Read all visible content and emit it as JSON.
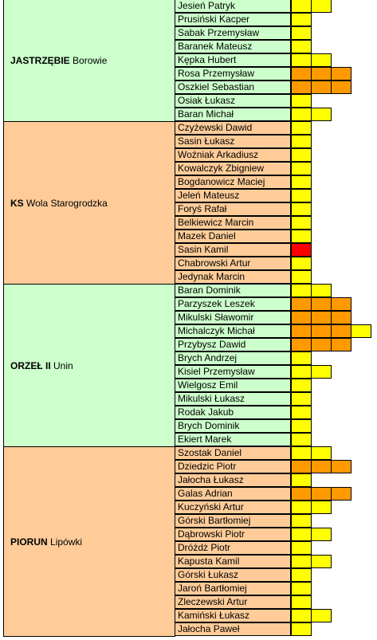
{
  "colors": {
    "green": "#ccffcc",
    "orange": "#ffcc99",
    "yellow_card": "#ffff00",
    "orange_card": "#ff9900",
    "red_card": "#ff0000"
  },
  "teams": [
    {
      "club": "JASTRZĘBIE",
      "town": "Borowie",
      "color": "green",
      "players": [
        {
          "name": "Jesień Patryk",
          "cards": [
            "y",
            "y"
          ]
        },
        {
          "name": "Prusiński Kacper",
          "cards": [
            "y"
          ]
        },
        {
          "name": "Sabak Przemysław",
          "cards": [
            "y"
          ]
        },
        {
          "name": "Baranek Mateusz",
          "cards": [
            "y"
          ]
        },
        {
          "name": "Kępka Hubert",
          "cards": [
            "y",
            "y"
          ]
        },
        {
          "name": "Rosa Przemysław",
          "cards": [
            "o",
            "o",
            "o"
          ]
        },
        {
          "name": "Oszkiel Sebastian",
          "cards": [
            "o",
            "o",
            "o"
          ]
        },
        {
          "name": "Osiak Łukasz",
          "cards": [
            "y"
          ]
        },
        {
          "name": "Baran Michał",
          "cards": [
            "y",
            "y"
          ]
        }
      ]
    },
    {
      "club": "KS",
      "town": "Wola Starogrodzka",
      "color": "orange",
      "players": [
        {
          "name": "Czyżewski Dawid",
          "cards": [
            "y"
          ]
        },
        {
          "name": "Sasin Łukasz",
          "cards": [
            "y"
          ]
        },
        {
          "name": "Woźniak Arkadiusz",
          "cards": [
            "y"
          ]
        },
        {
          "name": "Kowalczyk Zbigniew",
          "cards": [
            "y"
          ]
        },
        {
          "name": "Bogdanowicz Maciej",
          "cards": [
            "y"
          ]
        },
        {
          "name": "Jeleń Mateusz",
          "cards": [
            "y"
          ]
        },
        {
          "name": "Foryś Rafał",
          "cards": [
            "y"
          ]
        },
        {
          "name": "Belkiewicz Marcin",
          "cards": [
            "y"
          ]
        },
        {
          "name": "Mazek Daniel",
          "cards": [
            "y"
          ]
        },
        {
          "name": "Sasin Kamil",
          "cards": [
            "r"
          ]
        },
        {
          "name": "Chabrowski Artur",
          "cards": [
            "y"
          ]
        },
        {
          "name": "Jedynak Marcin",
          "cards": [
            "y"
          ]
        }
      ]
    },
    {
      "club": "ORZEŁ II",
      "town": "Unin",
      "color": "green",
      "players": [
        {
          "name": "Baran Dominik",
          "cards": [
            "y",
            "y"
          ]
        },
        {
          "name": "Parzyszek Leszek",
          "cards": [
            "o",
            "o",
            "o"
          ]
        },
        {
          "name": "Mikulski Sławomir",
          "cards": [
            "o",
            "o",
            "o"
          ]
        },
        {
          "name": "Michalczyk Michał",
          "cards": [
            "o",
            "o",
            "o",
            "y"
          ]
        },
        {
          "name": "Przybysz Dawid",
          "cards": [
            "o",
            "o",
            "o"
          ]
        },
        {
          "name": "Brych Andrzej",
          "cards": [
            "y"
          ]
        },
        {
          "name": "Kisiel Przemysław",
          "cards": [
            "y",
            "y"
          ]
        },
        {
          "name": "Wielgosz Emil",
          "cards": [
            "y"
          ]
        },
        {
          "name": "Mikulski Łukasz",
          "cards": [
            "y"
          ]
        },
        {
          "name": "Rodak Jakub",
          "cards": [
            "y"
          ]
        },
        {
          "name": "Brych Dominik",
          "cards": [
            "y"
          ]
        },
        {
          "name": "Ekiert Marek",
          "cards": [
            "y"
          ]
        }
      ]
    },
    {
      "club": "PIORUN",
      "town": "Lipówki",
      "color": "orange",
      "players": [
        {
          "name": "Szostak Daniel",
          "cards": [
            "y",
            "y"
          ]
        },
        {
          "name": "Dziedzic Piotr",
          "cards": [
            "o",
            "o",
            "o"
          ]
        },
        {
          "name": "Jałocha Łukasz",
          "cards": [
            "y"
          ]
        },
        {
          "name": "Galas Adrian",
          "cards": [
            "o",
            "o",
            "o"
          ]
        },
        {
          "name": "Kuczyński Artur",
          "cards": [
            "y",
            "y"
          ]
        },
        {
          "name": "Górski Bartłomiej",
          "cards": [
            "y"
          ]
        },
        {
          "name": "Dąbrowski Piotr",
          "cards": [
            "y",
            "y"
          ]
        },
        {
          "name": "Dróżdż Piotr",
          "cards": [
            "y"
          ]
        },
        {
          "name": "Kapusta Kamil",
          "cards": [
            "y",
            "y"
          ]
        },
        {
          "name": "Górski Łukasz",
          "cards": [
            "y"
          ]
        },
        {
          "name": "Jaroń Bartłomiej",
          "cards": [
            "y"
          ]
        },
        {
          "name": "Zleczewski Artur",
          "cards": [
            "y"
          ]
        },
        {
          "name": "Kamiński Łukasz",
          "cards": [
            "y",
            "y"
          ]
        },
        {
          "name": "Jałocha Paweł",
          "cards": [
            "y"
          ]
        }
      ]
    }
  ]
}
